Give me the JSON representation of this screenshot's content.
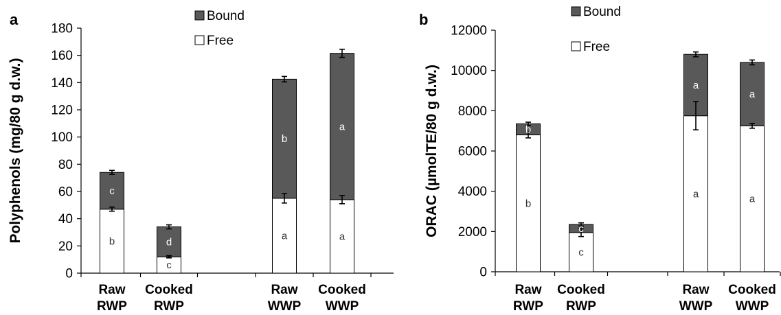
{
  "chart_data": [
    {
      "type": "bar",
      "stacked": true,
      "panel_label": "a",
      "ylabel": "Polyphenols (mg/80 g d.w.)",
      "ylim": [
        0,
        180
      ],
      "yticks": [
        0,
        20,
        40,
        60,
        80,
        100,
        120,
        140,
        160,
        180
      ],
      "categories": [
        {
          "line1": "Raw",
          "line2": "RWP"
        },
        {
          "line1": "Cooked",
          "line2": "RWP"
        },
        {
          "line1": "Raw",
          "line2": "WWP"
        },
        {
          "line1": "Cooked",
          "line2": "WWP"
        }
      ],
      "legend": {
        "position": "top-center",
        "entries": [
          "Bound",
          "Free"
        ]
      },
      "series": [
        {
          "name": "Free",
          "color": "#ffffff",
          "values": [
            47,
            12,
            55,
            54
          ],
          "errors": [
            1.5,
            0.8,
            3.5,
            3
          ],
          "labels": [
            "b",
            "c",
            "a",
            "a"
          ]
        },
        {
          "name": "Bound",
          "color": "#595959",
          "values": [
            27,
            22,
            87.5,
            107.5
          ],
          "errors": [
            1.5,
            1.5,
            2,
            3
          ],
          "labels": [
            "c",
            "d",
            "b",
            "a"
          ]
        }
      ]
    },
    {
      "type": "bar",
      "stacked": true,
      "panel_label": "b",
      "ylabel": "ORAC (µmolTE/80 g d.w.)",
      "ylim": [
        0,
        12000
      ],
      "yticks": [
        0,
        2000,
        4000,
        6000,
        8000,
        10000,
        12000
      ],
      "categories": [
        {
          "line1": "Raw",
          "line2": "RWP"
        },
        {
          "line1": "Cooked",
          "line2": "RWP"
        },
        {
          "line1": "Raw",
          "line2": "WWP"
        },
        {
          "line1": "Cooked",
          "line2": "WWP"
        }
      ],
      "legend": {
        "position": "top-center",
        "entries": [
          "Bound",
          "Free"
        ]
      },
      "series": [
        {
          "name": "Free",
          "color": "#ffffff",
          "values": [
            6800,
            1950,
            7750,
            7250
          ],
          "errors": [
            150,
            200,
            700,
            120
          ],
          "labels": [
            "b",
            "c",
            "a",
            "a"
          ]
        },
        {
          "name": "Bound",
          "color": "#595959",
          "values": [
            550,
            400,
            3050,
            3150
          ],
          "errors": [
            80,
            80,
            120,
            120
          ],
          "labels": [
            "b",
            "c",
            "a",
            "a"
          ]
        }
      ]
    }
  ]
}
